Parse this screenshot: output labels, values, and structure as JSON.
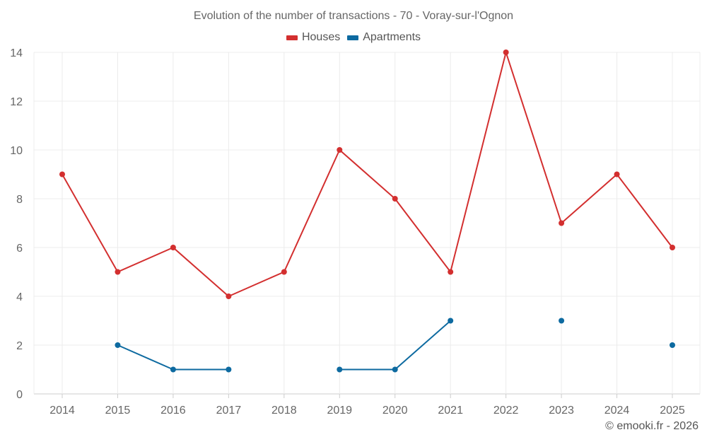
{
  "chart_data": {
    "type": "line",
    "title": "Evolution of the number of transactions - 70 - Voray-sur-l'Ognon",
    "categories": [
      "2014",
      "2015",
      "2016",
      "2017",
      "2018",
      "2019",
      "2020",
      "2021",
      "2022",
      "2023",
      "2024",
      "2025"
    ],
    "series": [
      {
        "name": "Houses",
        "color": "#d32f2f",
        "values": [
          9,
          5,
          6,
          4,
          5,
          10,
          8,
          5,
          14,
          7,
          9,
          6
        ]
      },
      {
        "name": "Apartments",
        "color": "#0d6aa0",
        "values": [
          null,
          2,
          1,
          1,
          null,
          1,
          1,
          3,
          null,
          3,
          null,
          2
        ]
      }
    ],
    "ylim": [
      0,
      14
    ],
    "yticks": [
      0,
      2,
      4,
      6,
      8,
      10,
      12,
      14
    ],
    "xlabel": "",
    "ylabel": "",
    "grid": true,
    "legend": "top-center"
  },
  "footer": {
    "copyright": "© emooki.fr - 2026"
  }
}
